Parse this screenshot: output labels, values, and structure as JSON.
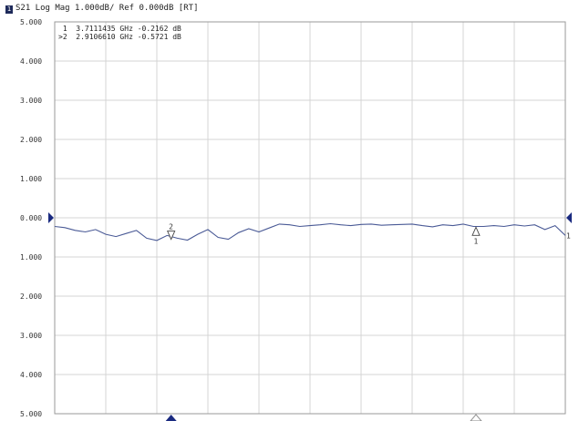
{
  "header": {
    "channel_badge": "1",
    "title": "S21 Log Mag 1.000dB/ Ref 0.000dB [RT]"
  },
  "colors": {
    "trace": "#4a5a96",
    "grid": "#d4d4d4",
    "frame": "#9a9a9a",
    "marker_fill": "#1a2a80"
  },
  "chart_data": {
    "type": "line",
    "title": "S21 Log Mag 1.000dB/ Ref 0.000dB [RT]",
    "xlabel": "",
    "ylabel": "",
    "ylim": [
      -5,
      5
    ],
    "y_ticks": [
      5,
      4,
      3,
      2,
      1,
      0,
      -1,
      -2,
      -3,
      -4,
      -5
    ],
    "y_tick_labels": [
      "5.000",
      "4.000",
      "3.000",
      "2.000",
      "1.000",
      "0.000",
      "1.000",
      "2.000",
      "3.000",
      "4.000",
      "5.000"
    ],
    "x_divisions": 10,
    "grid": true,
    "ref_level": 0,
    "series": [
      {
        "x": [
          0.0,
          0.2,
          0.4,
          0.6,
          0.8,
          1.0,
          1.2,
          1.4,
          1.6,
          1.8,
          2.0,
          2.2,
          2.4,
          2.6,
          2.8,
          3.0,
          3.2,
          3.4,
          3.6,
          3.8,
          4.0,
          4.2,
          4.4,
          4.6,
          4.8,
          5.0,
          5.2,
          5.4,
          5.6,
          5.8,
          6.0,
          6.2,
          6.4,
          6.6,
          6.8,
          7.0,
          7.2,
          7.4,
          7.6,
          7.8,
          8.0,
          8.2,
          8.4,
          8.6,
          8.8,
          9.0,
          9.2,
          9.4,
          9.6,
          9.8,
          10.0
        ],
        "values": [
          -0.22,
          -0.25,
          -0.32,
          -0.36,
          -0.3,
          -0.42,
          -0.48,
          -0.4,
          -0.32,
          -0.52,
          -0.58,
          -0.45,
          -0.52,
          -0.57,
          -0.42,
          -0.3,
          -0.5,
          -0.55,
          -0.38,
          -0.28,
          -0.36,
          -0.26,
          -0.16,
          -0.18,
          -0.22,
          -0.2,
          -0.18,
          -0.15,
          -0.18,
          -0.2,
          -0.17,
          -0.16,
          -0.19,
          -0.18,
          -0.17,
          -0.16,
          -0.2,
          -0.23,
          -0.18,
          -0.2,
          -0.16,
          -0.22,
          -0.22,
          -0.2,
          -0.22,
          -0.18,
          -0.21,
          -0.18,
          -0.3,
          -0.2,
          -0.45
        ]
      }
    ],
    "markers": [
      {
        "id": "1",
        "active": false,
        "freq": "3.7111435 GHz",
        "value": "-0.2162 dB",
        "x_div": 8.25,
        "y": -0.2162
      },
      {
        "id": "2",
        "active": true,
        "freq": "2.9106610 GHz",
        "value": "-0.5721 dB",
        "x_div": 2.28,
        "y": -0.5721
      }
    ],
    "marker_readouts": [
      " 1  3.7111435 GHz -0.2162 dB",
      ">2  2.9106610 GHz -0.5721 dB"
    ],
    "ref_marker_label": "1"
  }
}
